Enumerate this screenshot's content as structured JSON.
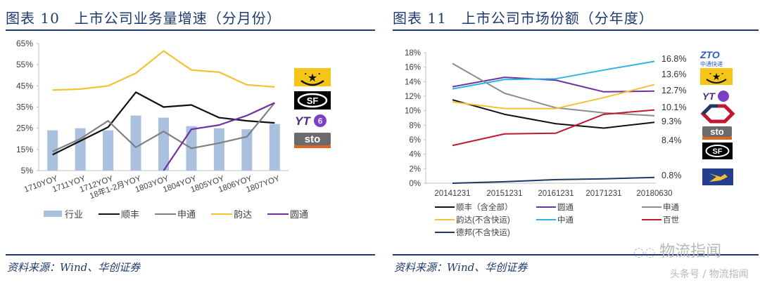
{
  "left": {
    "title": "图表 10　上市公司业务量增速（分月份）",
    "source": "资料来源：Wind、华创证券",
    "logos": [
      "yunda-logo",
      "sf-express-logo",
      "yto-logo",
      "sto-logo"
    ]
  },
  "right": {
    "title": "图表 11　上市公司市场份额（分年度）",
    "source": "资料来源：Wind、华创证券",
    "end_labels": [
      "16.8%",
      "13.6%",
      "12.7%",
      "10.1%",
      "9.3%",
      "8.4%",
      "0.8%"
    ],
    "logos": [
      "zto-logo",
      "yunda-logo",
      "yto-logo",
      "best-express-logo",
      "sto-logo",
      "sf-express-logo",
      "deppon-logo"
    ]
  },
  "watermark": {
    "brand": "物流指闻",
    "sub": "头条号 / 物流指闻"
  },
  "chart_data": [
    {
      "type": "bar",
      "title": "上市公司业务量增速（分月份）",
      "xlabel": "",
      "ylabel": "",
      "ylim": [
        0.05,
        0.65
      ],
      "yticks": [
        "5%",
        "15%",
        "25%",
        "35%",
        "45%",
        "55%",
        "65%"
      ],
      "grid": false,
      "legend_position": "bottom",
      "categories": [
        "1710YOY",
        "1711YOY",
        "1712YOY",
        "18年1-2月YOY",
        "1803YOY",
        "1804YOY",
        "1805YOY",
        "1806YOY",
        "1807YOY"
      ],
      "series": [
        {
          "name": "行业",
          "type": "bar",
          "color": "#a9c0de",
          "values": [
            0.24,
            0.25,
            0.24,
            0.31,
            0.3,
            0.26,
            0.25,
            0.245,
            0.27
          ]
        },
        {
          "name": "顺丰",
          "type": "line",
          "color": "#111111",
          "values": [
            0.125,
            0.19,
            0.255,
            0.42,
            0.35,
            0.36,
            0.3,
            0.285,
            0.275
          ]
        },
        {
          "name": "申通",
          "type": "line",
          "color": "#808080",
          "values": [
            0.14,
            0.2,
            0.285,
            0.16,
            0.235,
            0.155,
            0.18,
            0.21,
            0.37
          ]
        },
        {
          "name": "韵达",
          "type": "line",
          "color": "#f2c232",
          "values": [
            0.43,
            0.435,
            0.45,
            0.51,
            0.615,
            0.525,
            0.515,
            0.455,
            0.445
          ]
        },
        {
          "name": "圆通",
          "type": "line",
          "color": "#7030a0",
          "values": [
            null,
            null,
            null,
            null,
            0.05,
            0.245,
            0.265,
            0.31,
            0.37
          ]
        }
      ]
    },
    {
      "type": "line",
      "title": "上市公司市场份额（分年度）",
      "xlabel": "",
      "ylabel": "",
      "ylim": [
        0,
        0.18
      ],
      "yticks": [
        "0%",
        "2%",
        "4%",
        "6%",
        "8%",
        "10%",
        "12%",
        "14%",
        "16%",
        "18%"
      ],
      "grid": false,
      "legend_position": "bottom",
      "categories": [
        "20141231",
        "20151231",
        "20161231",
        "20171231",
        "20180630"
      ],
      "series": [
        {
          "name": "顺丰（含全部）",
          "color": "#111111",
          "values": [
            0.115,
            0.095,
            0.082,
            0.076,
            0.084
          ]
        },
        {
          "name": "圆通",
          "color": "#7030a0",
          "values": [
            0.133,
            0.146,
            0.142,
            0.126,
            0.127
          ]
        },
        {
          "name": "申通",
          "color": "#8c8c8c",
          "values": [
            0.165,
            0.124,
            0.104,
            0.097,
            0.093
          ]
        },
        {
          "name": "韵达(不含快运)",
          "color": "#f2c232",
          "values": [
            0.112,
            0.103,
            0.103,
            0.118,
            0.136
          ]
        },
        {
          "name": "中通",
          "color": "#2eb4e0",
          "values": [
            0.13,
            0.143,
            0.144,
            0.156,
            0.168
          ]
        },
        {
          "name": "百世",
          "color": "#c0182f",
          "values": [
            0.052,
            0.068,
            0.069,
            0.095,
            0.101
          ]
        },
        {
          "name": "德邦(不含快运)",
          "color": "#1f3864",
          "values": [
            0.0,
            0.002,
            0.005,
            0.006,
            0.008
          ]
        }
      ],
      "annotations": [
        "16.8%",
        "13.6%",
        "12.7%",
        "10.1%",
        "9.3%",
        "8.4%",
        "0.8%"
      ]
    }
  ]
}
